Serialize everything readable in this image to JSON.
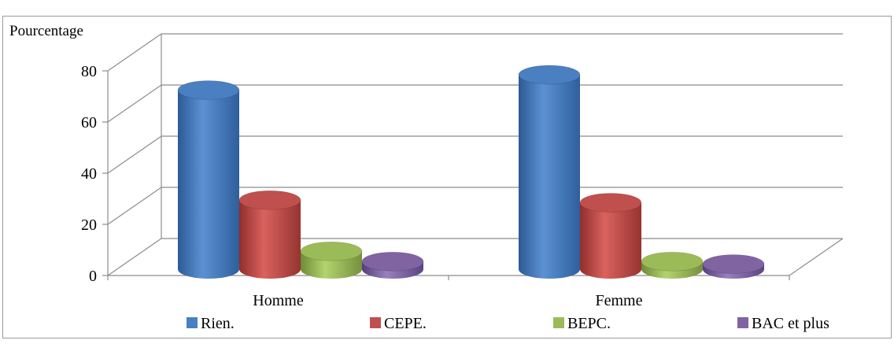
{
  "chart_data": {
    "type": "bar",
    "title": "",
    "ylabel": "Pourcentage",
    "xlabel": "",
    "ylim": [
      0,
      80
    ],
    "yticks": [
      0,
      20,
      40,
      60,
      80
    ],
    "grid": true,
    "legend_position": "bottom",
    "categories": [
      "Homme",
      "Femme"
    ],
    "series": [
      {
        "name": "Rien.",
        "values": [
          70,
          76
        ],
        "color": "#4a7fc1"
      },
      {
        "name": "CEPE.",
        "values": [
          27,
          26
        ],
        "color": "#c0504d"
      },
      {
        "name": "BEPC.",
        "values": [
          7,
          3
        ],
        "color": "#9bbb59"
      },
      {
        "name": "BAC et plus",
        "values": [
          3,
          2
        ],
        "color": "#8064a2"
      }
    ]
  }
}
